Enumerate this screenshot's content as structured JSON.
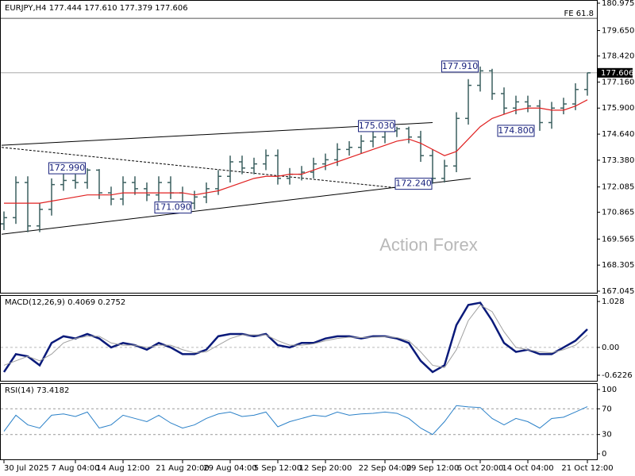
{
  "chart_data": {
    "type": "ohlc",
    "title": "EURJPY,H4 177.444 177.610 177.379 177.606",
    "watermark": "Action Forex",
    "categories": [
      "30 Jul 2025",
      null,
      null,
      null,
      null,
      null,
      "7 Aug 04:00",
      null,
      null,
      null,
      "14 Aug 12:00",
      null,
      null,
      null,
      null,
      "21 Aug 20:00",
      null,
      null,
      null,
      "29 Aug 04:00",
      null,
      null,
      null,
      "5 Sep 12:00",
      null,
      null,
      null,
      "12 Sep 20:00",
      null,
      null,
      null,
      null,
      "22 Sep 04:00",
      null,
      null,
      null,
      "29 Sep 12:00",
      null,
      null,
      null,
      "6 Oct 20:00",
      null,
      null,
      null,
      "14 Oct 04:00",
      null,
      null,
      null,
      null,
      "21 Oct 12:00"
    ],
    "color": "#3a5f5f",
    "open": [
      170.3,
      170.6,
      172.3,
      170.2,
      171.0,
      172.2,
      172.4,
      172.3,
      172.9,
      171.8,
      171.5,
      172.3,
      172.0,
      171.7,
      172.3,
      171.8,
      171.3,
      171.6,
      172.0,
      172.6,
      173.3,
      173.0,
      173.2,
      173.6,
      172.5,
      172.7,
      172.8,
      173.2,
      173.4,
      173.9,
      174.0,
      174.3,
      174.5,
      174.8,
      174.9,
      174.5,
      173.6,
      172.5,
      173.1,
      175.4,
      177.0,
      177.7,
      176.6,
      175.9,
      176.2,
      176.0,
      175.2,
      175.9,
      176.1,
      176.8
    ],
    "high": [
      170.9,
      172.6,
      172.6,
      171.3,
      172.5,
      172.7,
      172.7,
      172.99,
      172.95,
      172.1,
      172.6,
      172.6,
      172.3,
      172.6,
      172.6,
      172.1,
      171.9,
      172.3,
      172.9,
      173.6,
      173.6,
      173.5,
      173.9,
      173.9,
      173.0,
      173.1,
      173.5,
      173.7,
      174.2,
      174.3,
      174.6,
      174.8,
      175.03,
      175.0,
      175.0,
      174.8,
      173.9,
      173.4,
      175.7,
      177.3,
      177.91,
      177.8,
      176.9,
      176.5,
      176.5,
      176.3,
      176.2,
      176.4,
      177.1,
      177.61
    ],
    "low": [
      170.0,
      170.3,
      169.9,
      169.9,
      170.7,
      171.9,
      172.0,
      172.0,
      171.5,
      171.2,
      171.2,
      171.7,
      171.4,
      171.4,
      171.5,
      171.09,
      171.0,
      171.3,
      171.7,
      172.3,
      172.7,
      172.7,
      172.9,
      172.2,
      172.2,
      172.4,
      172.5,
      172.9,
      173.1,
      173.6,
      173.7,
      174.0,
      174.2,
      174.5,
      174.2,
      173.3,
      172.24,
      172.3,
      172.8,
      175.1,
      176.7,
      176.3,
      175.6,
      175.6,
      175.7,
      174.8,
      174.9,
      175.6,
      175.8,
      176.5
    ],
    "close": [
      170.6,
      172.3,
      170.2,
      171.0,
      172.2,
      172.4,
      172.3,
      172.9,
      171.8,
      171.5,
      172.3,
      172.0,
      171.7,
      172.3,
      171.8,
      171.3,
      171.6,
      172.0,
      172.6,
      173.3,
      173.0,
      173.2,
      173.6,
      172.5,
      172.7,
      172.8,
      173.2,
      173.4,
      173.9,
      174.0,
      174.3,
      174.5,
      174.8,
      174.9,
      174.5,
      173.6,
      172.5,
      173.1,
      175.4,
      177.0,
      177.7,
      176.6,
      175.9,
      176.2,
      176.0,
      175.2,
      175.9,
      176.1,
      176.8,
      177.606
    ],
    "ma": {
      "color": "#e02020",
      "values": [
        171.3,
        171.3,
        171.3,
        171.3,
        171.4,
        171.5,
        171.6,
        171.7,
        171.7,
        171.7,
        171.8,
        171.8,
        171.8,
        171.8,
        171.8,
        171.8,
        171.7,
        171.8,
        171.9,
        172.1,
        172.3,
        172.5,
        172.6,
        172.6,
        172.7,
        172.7,
        172.9,
        173.1,
        173.3,
        173.5,
        173.7,
        173.9,
        174.1,
        174.3,
        174.4,
        174.2,
        173.9,
        173.6,
        173.8,
        174.4,
        175.0,
        175.4,
        175.6,
        175.8,
        175.9,
        175.9,
        175.8,
        175.8,
        176.0,
        176.3
      ]
    },
    "ylim": [
      167.045,
      180.975
    ],
    "yticks": [
      {
        "value": 180.975,
        "label": "180.975"
      },
      {
        "value": 179.65,
        "label": "179.650"
      },
      {
        "value": 178.42,
        "label": "178.420"
      },
      {
        "value": 177.16,
        "label": "177.160"
      },
      {
        "value": 175.9,
        "label": "175.900"
      },
      {
        "value": 174.64,
        "label": "174.640"
      },
      {
        "value": 173.38,
        "label": "173.380"
      },
      {
        "value": 172.085,
        "label": "172.085"
      },
      {
        "value": 170.865,
        "label": "170.865"
      },
      {
        "value": 169.565,
        "label": "169.565"
      },
      {
        "value": 168.305,
        "label": "168.305"
      },
      {
        "value": 167.045,
        "label": "167.045"
      }
    ],
    "last_price": {
      "value": 177.606,
      "label": "177.606"
    },
    "fe_line": {
      "label": "FE 61.8",
      "value": 180.24
    },
    "trendlines": [
      {
        "x": [
          -0.2,
          36
        ],
        "y": [
          174.1,
          175.2
        ],
        "style": "solid"
      },
      {
        "x": [
          -0.2,
          39.2
        ],
        "y": [
          169.8,
          172.5
        ],
        "style": "solid"
      },
      {
        "x": [
          -0.2,
          33.7
        ],
        "y": [
          174.0,
          172.0
        ],
        "style": "dashed"
      }
    ],
    "annotations": [
      {
        "at": 5.3,
        "value": 172.99,
        "label": "172.990"
      },
      {
        "at": 14.2,
        "value": 171.09,
        "label": "171.090"
      },
      {
        "at": 31.3,
        "value": 175.03,
        "label": "175.030"
      },
      {
        "at": 34.4,
        "value": 172.24,
        "label": "172.240"
      },
      {
        "at": 38.3,
        "value": 177.91,
        "label": "177.910"
      },
      {
        "at": 43,
        "value": 174.8,
        "label": "174.800"
      }
    ],
    "macd": {
      "title": "MACD(12,26,9) 0.4069 0.2752",
      "ylim": [
        -0.6226,
        1.028
      ],
      "yticks": [
        1.028,
        {
          "value": 0,
          "label": "0.00"
        },
        -0.6226
      ],
      "series": [
        {
          "color": "#0a1a7a",
          "values": [
            -0.55,
            -0.15,
            -0.2,
            -0.4,
            0.1,
            0.25,
            0.2,
            0.3,
            0.2,
            0.0,
            0.1,
            0.05,
            -0.05,
            0.1,
            0.0,
            -0.15,
            -0.15,
            -0.05,
            0.25,
            0.3,
            0.3,
            0.25,
            0.3,
            0.05,
            0.0,
            0.1,
            0.1,
            0.2,
            0.25,
            0.25,
            0.2,
            0.25,
            0.25,
            0.2,
            0.1,
            -0.3,
            -0.55,
            -0.4,
            0.5,
            0.95,
            1.0,
            0.6,
            0.1,
            -0.1,
            -0.05,
            -0.15,
            -0.15,
            0.0,
            0.15,
            0.4069
          ]
        },
        {
          "color": "#a0a0a0",
          "values": [
            -0.4,
            -0.3,
            -0.2,
            -0.3,
            -0.15,
            0.1,
            0.2,
            0.25,
            0.25,
            0.1,
            0.05,
            0.05,
            0.0,
            0.05,
            0.05,
            -0.05,
            -0.12,
            -0.1,
            0.05,
            0.2,
            0.28,
            0.28,
            0.28,
            0.15,
            0.05,
            0.05,
            0.08,
            0.15,
            0.2,
            0.23,
            0.22,
            0.23,
            0.24,
            0.22,
            0.15,
            -0.1,
            -0.4,
            -0.45,
            -0.05,
            0.6,
            0.95,
            0.8,
            0.35,
            0.0,
            -0.05,
            -0.1,
            -0.12,
            -0.05,
            0.05,
            0.2752
          ]
        }
      ]
    },
    "rsi": {
      "title": "RSI(14) 73.4182",
      "ylim": [
        0,
        100
      ],
      "yticks": [
        100,
        70,
        30,
        0
      ],
      "levels": [
        70,
        30
      ],
      "color": "#2a80c8",
      "values": [
        35,
        60,
        45,
        40,
        60,
        62,
        58,
        65,
        40,
        45,
        60,
        55,
        50,
        60,
        48,
        40,
        45,
        55,
        62,
        65,
        58,
        60,
        65,
        42,
        50,
        55,
        60,
        58,
        65,
        60,
        62,
        63,
        65,
        63,
        55,
        40,
        30,
        50,
        75,
        73,
        72,
        55,
        45,
        55,
        50,
        40,
        55,
        57,
        65,
        73.4182
      ]
    }
  }
}
